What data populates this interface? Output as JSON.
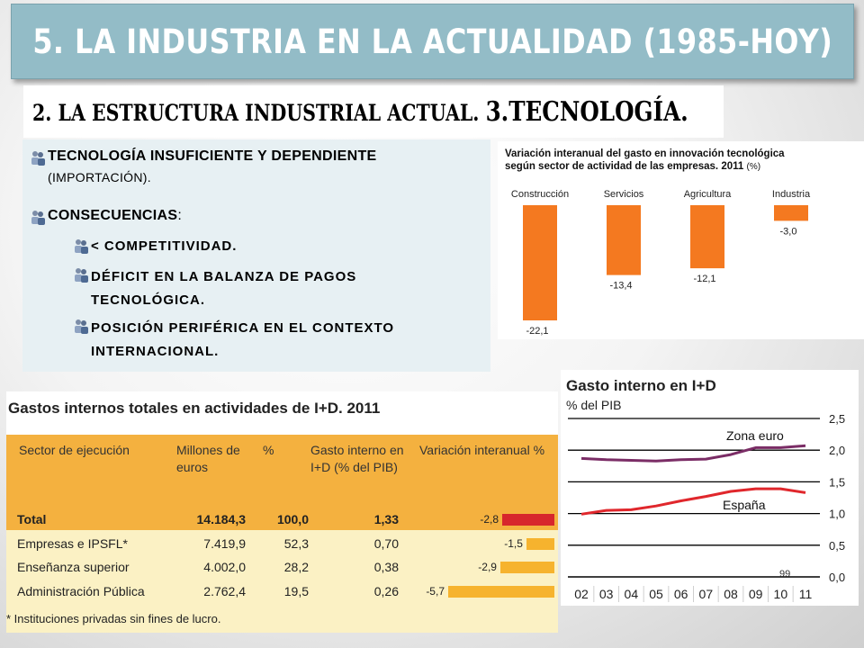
{
  "slide": {
    "title": "5. LA INDUSTRIA EN LA ACTUALIDAD (1985-HOY)",
    "subtitle_a": "2. LA ESTRUCTURA INDUSTRIAL ACTUAL. ",
    "subtitle_b": "3.TECNOLOGÍA.",
    "page_number": "99"
  },
  "bullets": {
    "b1": "TECNOLOGÍA INSUFICIENTE Y DEPENDIENTE",
    "b1_note": "(IMPORTACIÓN).",
    "b2": "CONSECUENCIAS",
    "b2_suffix": ":",
    "sub1": "< COMPETITIVIDAD.",
    "sub2_l1": "DÉFICIT EN LA BALANZA DE PAGOS",
    "sub2_l2": "TECNOLÓGICA.",
    "sub3_l1": "POSICIÓN PERIFÉRICA EN EL CONTEXTO",
    "sub3_l2": "INTERNACIONAL.",
    "icon": "bullet-people-icon"
  },
  "chart_data": [
    {
      "type": "bar",
      "title_l1": "Variación interanual del gasto en innovación tecnológica",
      "title_l2": "según sector de actividad de las empresas. 2011",
      "unit": "(%)",
      "categories": [
        "Construcción",
        "Servicios",
        "Agricultura",
        "Industria"
      ],
      "values": [
        -22.1,
        -13.4,
        -12.1,
        -3.0
      ],
      "value_labels": [
        "-22,1",
        "-13,4",
        "-12,1",
        "-3,0"
      ],
      "color": "#f47920"
    },
    {
      "type": "table",
      "title": "Gastos internos totales en actividades de I+D. 2011",
      "headers": [
        "Sector de ejecución",
        "Millones de euros",
        "%",
        "Gasto interno en I+D (% del PIB)",
        "Variación interanual %"
      ],
      "rows": [
        {
          "sector": "Total",
          "millones": "14.184,3",
          "pct": "100,0",
          "pib": "1,33",
          "var_label": "-2,8",
          "var": -2.8,
          "bold": true
        },
        {
          "sector": "Empresas e IPSFL*",
          "millones": "7.419,9",
          "pct": "52,3",
          "pib": "0,70",
          "var_label": "-1,5",
          "var": -1.5,
          "bold": false
        },
        {
          "sector": "Enseñanza superior",
          "millones": "4.002,0",
          "pct": "28,2",
          "pib": "0,38",
          "var_label": "-2,9",
          "var": -2.9,
          "bold": false
        },
        {
          "sector": "Administración Pública",
          "millones": "2.762,4",
          "pct": "19,5",
          "pib": "0,26",
          "var_label": "-5,7",
          "var": -5.7,
          "bold": false
        }
      ],
      "footnote": "* Instituciones privadas sin fines de lucro.",
      "colors": {
        "total_bar": "#d7262c",
        "bar": "#f6b32e"
      }
    },
    {
      "type": "line",
      "title": "Gasto interno en I+D",
      "subtitle": "% del PIB",
      "x": [
        "02",
        "03",
        "04",
        "05",
        "06",
        "07",
        "08",
        "09",
        "10",
        "11"
      ],
      "ylim": [
        0,
        2.5
      ],
      "yticks": [
        "2,5",
        "2,0",
        "1,5",
        "1,0",
        "0,5",
        "0,0"
      ],
      "series": [
        {
          "name": "Zona euro",
          "values": [
            1.87,
            1.85,
            1.84,
            1.83,
            1.85,
            1.86,
            1.93,
            2.04,
            2.04,
            2.07
          ],
          "color": "#7b2d66"
        },
        {
          "name": "España",
          "values": [
            0.99,
            1.05,
            1.06,
            1.12,
            1.2,
            1.27,
            1.35,
            1.39,
            1.39,
            1.33
          ],
          "color": "#e0272c"
        }
      ]
    }
  ]
}
